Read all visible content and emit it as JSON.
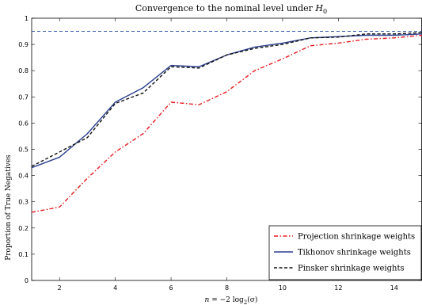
{
  "chart_data": {
    "type": "line",
    "title": "Convergence to the nominal level under H0",
    "title_math": {
      "prefix": "Convergence to the nominal level under ",
      "symbol": "H",
      "subscript": "0"
    },
    "xlabel": "n = −2 log2(σ)",
    "xlabel_math": {
      "lhs": "n",
      "eq": " = −2 log",
      "sub": "2",
      "rhs": "(σ)"
    },
    "ylabel": "Proportion of True Negatives",
    "xlim": [
      1,
      15
    ],
    "ylim": [
      0,
      1
    ],
    "xticks": [
      2,
      4,
      6,
      8,
      10,
      12,
      14
    ],
    "yticks": [
      0,
      0.1,
      0.2,
      0.3,
      0.4,
      0.5,
      0.6,
      0.7,
      0.8,
      0.9,
      1
    ],
    "ytick_labels": [
      "0",
      "0.1",
      "0.2",
      "0.3",
      "0.4",
      "0.5",
      "0.6",
      "0.7",
      "0.8",
      "0.9",
      "1"
    ],
    "xtick_labels": [
      "2",
      "4",
      "6",
      "8",
      "10",
      "12",
      "14"
    ],
    "legend_position": "bottom-right",
    "x": [
      1,
      2,
      3,
      4,
      5,
      6,
      7,
      8,
      9,
      10,
      11,
      12,
      13,
      14,
      15
    ],
    "reference_line": {
      "y": 0.95,
      "color": "#3355aa",
      "style": "dashed"
    },
    "series": [
      {
        "name": "Projection shrinkage weights",
        "color": "#e8191e",
        "style": "dashdot",
        "values": [
          0.26,
          0.28,
          0.39,
          0.49,
          0.56,
          0.68,
          0.67,
          0.72,
          0.8,
          0.845,
          0.895,
          0.905,
          0.92,
          0.925,
          0.935
        ]
      },
      {
        "name": "Tikhonov shrinkage weights",
        "color": "#2b3f8f",
        "style": "solid",
        "values": [
          0.43,
          0.47,
          0.56,
          0.68,
          0.735,
          0.82,
          0.815,
          0.86,
          0.89,
          0.905,
          0.925,
          0.93,
          0.935,
          0.935,
          0.94
        ]
      },
      {
        "name": "Pinsker shrinkage weights",
        "color": "#111111",
        "style": "dashed",
        "values": [
          0.435,
          0.49,
          0.545,
          0.675,
          0.715,
          0.815,
          0.81,
          0.86,
          0.885,
          0.9,
          0.925,
          0.928,
          0.94,
          0.94,
          0.945
        ]
      }
    ]
  }
}
